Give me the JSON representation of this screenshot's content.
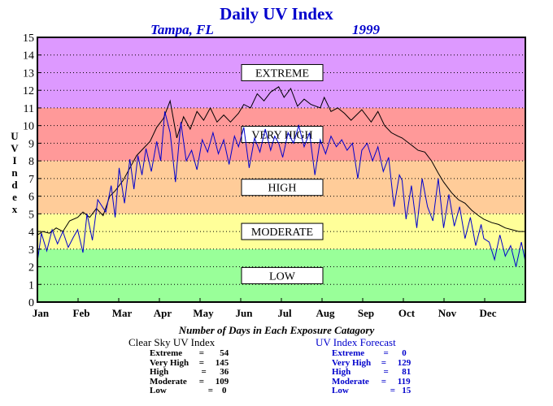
{
  "chart_data": {
    "type": "line",
    "title": "Daily UV Index",
    "location": "Tampa, FL",
    "year": "1999",
    "xlabel": "",
    "ylabel": "UV Index",
    "ylim": [
      0,
      15
    ],
    "yticks": [
      "0",
      "1",
      "2",
      "3",
      "4",
      "5",
      "6",
      "7",
      "8",
      "9",
      "10",
      "11",
      "12",
      "13",
      "14",
      "15"
    ],
    "months": [
      "Jan",
      "Feb",
      "Mar",
      "Apr",
      "May",
      "Jun",
      "Jul",
      "Aug",
      "Sep",
      "Oct",
      "Nov",
      "Dec"
    ],
    "grid": "dotted horizontal",
    "bands": [
      {
        "label": "LOW",
        "from": 0,
        "to": 3,
        "color": "#99ff99"
      },
      {
        "label": "MODERATE",
        "from": 3,
        "to": 5,
        "color": "#ffff99"
      },
      {
        "label": "HIGH",
        "from": 5,
        "to": 8,
        "color": "#ffcc99"
      },
      {
        "label": "VERY HIGH",
        "from": 8,
        "to": 11,
        "color": "#ff9999"
      },
      {
        "label": "EXTREME",
        "from": 11,
        "to": 15,
        "color": "#dd99ff"
      }
    ],
    "series": [
      {
        "name": "Clear Sky UV Index",
        "color": "#000000",
        "x": [
          1,
          5,
          10,
          15,
          20,
          25,
          31,
          35,
          40,
          45,
          50,
          55,
          59,
          65,
          70,
          75,
          80,
          85,
          90,
          95,
          100,
          105,
          110,
          115,
          120,
          125,
          130,
          135,
          140,
          145,
          151,
          155,
          160,
          165,
          170,
          175,
          181,
          185,
          190,
          195,
          200,
          205,
          212,
          215,
          220,
          225,
          230,
          235,
          243,
          250,
          255,
          260,
          265,
          270,
          273,
          280,
          285,
          290,
          295,
          300,
          304,
          310,
          315,
          320,
          325,
          330,
          334,
          340,
          345,
          350,
          355,
          360,
          365
        ],
        "values": [
          3.8,
          4.0,
          3.9,
          4.2,
          4.0,
          4.6,
          4.8,
          5.1,
          4.8,
          5.3,
          4.9,
          6.0,
          6.3,
          6.9,
          7.6,
          8.3,
          8.7,
          9.1,
          9.9,
          10.4,
          11.4,
          9.3,
          10.5,
          9.8,
          10.8,
          10.3,
          11.0,
          10.2,
          10.6,
          10.2,
          10.7,
          11.2,
          11.0,
          11.8,
          11.4,
          11.9,
          12.2,
          11.6,
          12.1,
          11.1,
          11.5,
          11.2,
          11.0,
          11.6,
          10.8,
          11.0,
          10.7,
          10.3,
          10.9,
          10.2,
          10.8,
          10.0,
          9.6,
          9.4,
          9.3,
          8.9,
          8.6,
          8.5,
          8.0,
          7.3,
          6.8,
          6.2,
          5.8,
          5.6,
          5.2,
          4.9,
          4.7,
          4.5,
          4.4,
          4.2,
          4.1,
          4.0,
          4.0
        ]
      },
      {
        "name": "UV Index Forecast",
        "color": "#0000cc",
        "x": [
          1,
          4,
          8,
          12,
          16,
          20,
          24,
          28,
          31,
          35,
          38,
          42,
          46,
          52,
          56,
          59,
          62,
          66,
          70,
          73,
          76,
          79,
          82,
          86,
          90,
          93,
          96,
          100,
          104,
          108,
          112,
          116,
          120,
          124,
          128,
          132,
          136,
          140,
          144,
          148,
          151,
          155,
          159,
          163,
          167,
          171,
          175,
          178,
          181,
          184,
          188,
          192,
          196,
          200,
          204,
          208,
          212,
          216,
          220,
          224,
          228,
          232,
          236,
          240,
          243,
          247,
          251,
          255,
          259,
          263,
          267,
          271,
          273,
          276,
          280,
          284,
          288,
          292,
          296,
          300,
          304,
          308,
          312,
          316,
          320,
          324,
          328,
          332,
          334,
          338,
          342,
          346,
          350,
          354,
          358,
          362,
          365
        ],
        "values": [
          2.3,
          3.9,
          2.9,
          4.1,
          3.3,
          4.0,
          3.1,
          3.7,
          4.1,
          2.8,
          5.0,
          3.5,
          5.8,
          5.1,
          6.6,
          4.8,
          7.6,
          5.6,
          8.1,
          6.4,
          8.3,
          7.2,
          8.7,
          7.4,
          9.1,
          8.0,
          10.8,
          9.6,
          6.8,
          10.2,
          8.0,
          8.6,
          7.5,
          9.2,
          8.5,
          9.6,
          8.4,
          9.2,
          7.8,
          9.4,
          8.8,
          9.9,
          7.6,
          9.3,
          8.5,
          9.8,
          8.6,
          9.4,
          9.0,
          8.2,
          9.6,
          9.0,
          10.0,
          8.8,
          9.6,
          7.2,
          9.2,
          8.4,
          9.4,
          8.8,
          9.2,
          8.6,
          9.0,
          7.0,
          8.6,
          9.0,
          8.0,
          8.8,
          7.4,
          8.2,
          5.4,
          7.2,
          6.9,
          4.7,
          6.6,
          4.2,
          7.0,
          5.4,
          4.6,
          7.0,
          4.2,
          6.1,
          4.3,
          5.4,
          3.6,
          4.8,
          3.2,
          4.4,
          3.6,
          3.4,
          2.4,
          3.8,
          2.6,
          3.2,
          2.0,
          3.4,
          2.3
        ]
      }
    ]
  },
  "stats": {
    "title": "Number of Days in Each Exposure Catagory",
    "clear_sky": {
      "header": "Clear Sky UV Index",
      "rows": [
        {
          "label": "Extreme",
          "sep": " = ",
          "value": "  54"
        },
        {
          "label": "Very High",
          "sep": " =",
          "value": "145"
        },
        {
          "label": "High",
          "sep": "  = ",
          "value": "  36"
        },
        {
          "label": "Moderate",
          "sep": " =",
          "value": "109"
        },
        {
          "label": "Low",
          "sep": "     = ",
          "value": "   0"
        }
      ]
    },
    "forecast": {
      "header": "UV Index Forecast",
      "rows": [
        {
          "label": "Extreme",
          "sep": "  =  ",
          "value": "  0"
        },
        {
          "label": "Very High",
          "sep": " =",
          "value": "129"
        },
        {
          "label": "High",
          "sep": "  = ",
          "value": "  81"
        },
        {
          "label": "Moderate",
          "sep": " =",
          "value": "119"
        },
        {
          "label": "Low",
          "sep": "     = ",
          "value": "  15"
        }
      ]
    }
  }
}
